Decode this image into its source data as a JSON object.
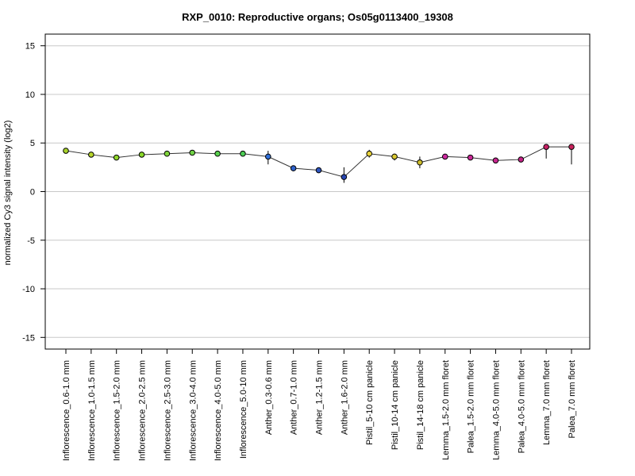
{
  "chart_data": {
    "type": "line",
    "title": "RXP_0010: Reproductive organs; Os05g0113400_19308",
    "xlabel": "",
    "ylabel": "normalized Cy3 signal intensity (log2)",
    "ylim": [
      -16.2,
      16.2
    ],
    "yticks": [
      -15,
      -10,
      -5,
      0,
      5,
      10,
      15
    ],
    "grid": "horizontal",
    "categories": [
      "Inflorescence_0.6-1.0 mm",
      "Inflorescence_1.0-1.5 mm",
      "Inflorescence_1.5-2.0 mm",
      "Inflorescence_2.0-2.5 mm",
      "Inflorescence_2.5-3.0 mm",
      "Inflorescence_3.0-4.0 mm",
      "Inflorescence_4.0-5.0 mm",
      "Inflorescence_5.0-10 mm",
      "Anther_0.3-0.6 mm",
      "Anther_0.7-1.0 mm",
      "Anther_1.2-1.5 mm",
      "Anther_1.6-2.0 mm",
      "Pistil_5-10 cm panicle",
      "Pistil_10-14 cm panicle",
      "Pistil_14-18 cm panicle",
      "Lemma_1.5-2.0 mm floret",
      "Palea_1.5-2.0 mm floret",
      "Lemma_4.0-5.0 mm floret",
      "Palea_4.0-5.0 mm floret",
      "Lemma_7.0 mm floret",
      "Palea_7.0 mm floret"
    ],
    "values": [
      4.2,
      3.8,
      3.5,
      3.8,
      3.9,
      4.0,
      3.9,
      3.9,
      3.6,
      2.4,
      2.2,
      1.5,
      3.9,
      3.6,
      3.0,
      3.6,
      3.5,
      3.2,
      3.3,
      4.6,
      4.6
    ],
    "error_low": [
      4.2,
      3.8,
      3.5,
      3.8,
      3.9,
      4.0,
      3.9,
      3.9,
      2.8,
      2.1,
      2.0,
      0.9,
      3.5,
      3.2,
      2.4,
      3.6,
      3.3,
      3.1,
      3.2,
      3.4,
      2.8
    ],
    "error_high": [
      4.2,
      3.8,
      3.5,
      3.8,
      3.9,
      4.0,
      3.9,
      3.9,
      4.2,
      2.6,
      2.3,
      2.5,
      4.3,
      3.9,
      3.6,
      3.6,
      3.7,
      3.3,
      3.4,
      4.7,
      4.7
    ],
    "point_colors": [
      "#a8d22b",
      "#b7d62a",
      "#8fd62a",
      "#8ad92a",
      "#7fd43a",
      "#6fd245",
      "#58d04d",
      "#4ccd54",
      "#2f6fd8",
      "#2f62cc",
      "#2e55c0",
      "#2846b3",
      "#e8d23a",
      "#d9c832",
      "#cdbd2c",
      "#cc2aa0",
      "#c92897",
      "#c7268f",
      "#c52488",
      "#c82266",
      "#c8225c"
    ],
    "line_color": "#333333",
    "grid_color": "#c8c8c8"
  }
}
